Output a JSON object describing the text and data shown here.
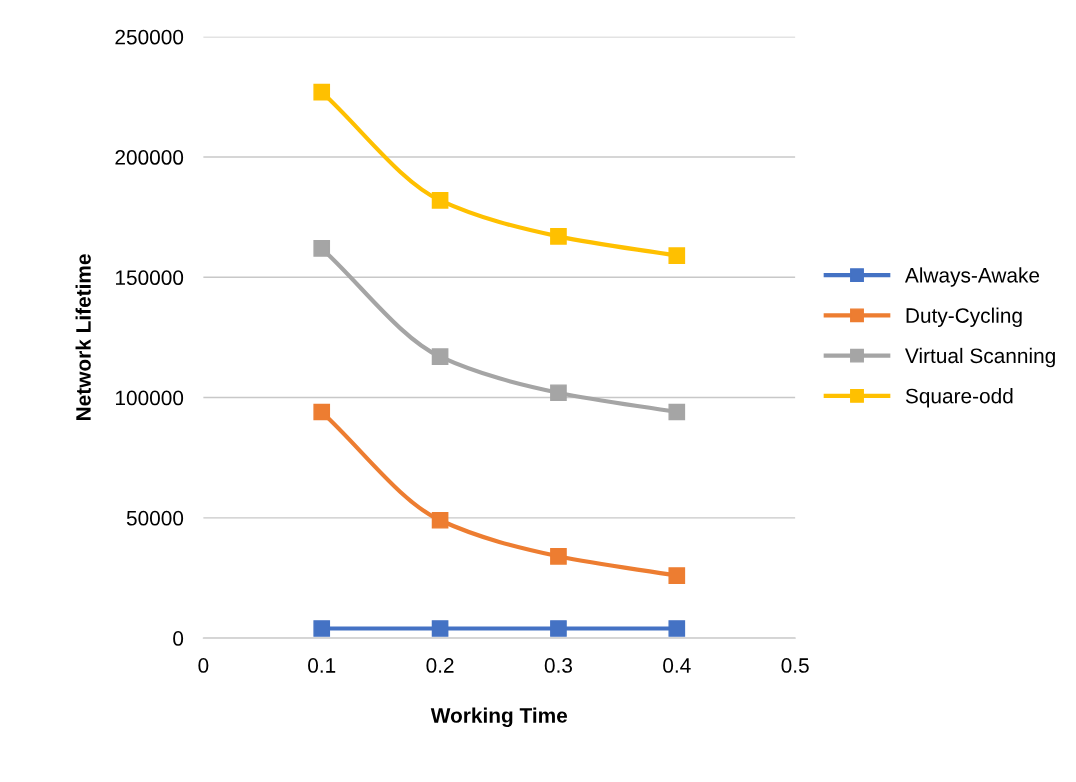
{
  "chart_data": {
    "type": "line",
    "xlabel": "Working Time",
    "ylabel": "Network Lifetime",
    "x": [
      0.1,
      0.2,
      0.3,
      0.4
    ],
    "series": [
      {
        "name": "Always-Awake",
        "color": "#4472c4",
        "values": [
          4000,
          4000,
          4000,
          4000
        ]
      },
      {
        "name": "Duty-Cycling",
        "color": "#ed7d31",
        "values": [
          94000,
          49000,
          34000,
          26000
        ]
      },
      {
        "name": "Virtual Scanning",
        "color": "#a5a5a5",
        "values": [
          162000,
          117000,
          102000,
          94000
        ]
      },
      {
        "name": "Square-odd",
        "color": "#ffc000",
        "values": [
          227000,
          182000,
          167000,
          159000
        ]
      }
    ],
    "xlim": [
      0,
      0.5
    ],
    "xticks": [
      0,
      0.1,
      0.2,
      0.3,
      0.4,
      0.5
    ],
    "ylim": [
      0,
      250000
    ],
    "yticks": [
      0,
      50000,
      100000,
      150000,
      200000,
      250000
    ],
    "grid": "y",
    "legend": "right",
    "marker": "square",
    "line_style": "solid"
  }
}
